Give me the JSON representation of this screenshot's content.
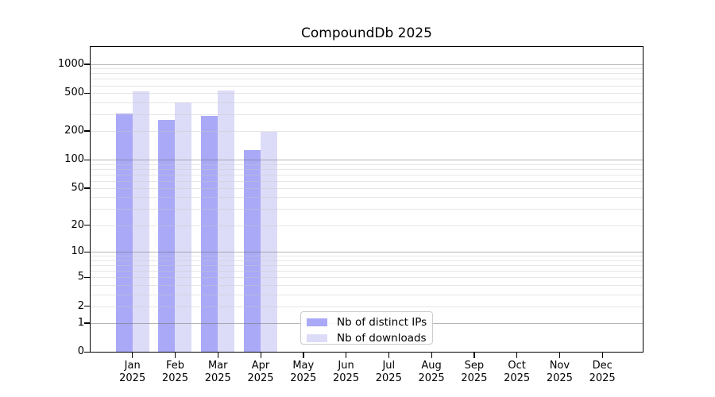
{
  "chart_data": {
    "type": "bar",
    "title": "CompoundDb 2025",
    "scale": "symlog (log1p)",
    "categories": [
      "Jan",
      "Feb",
      "Mar",
      "Apr",
      "May",
      "Jun",
      "Jul",
      "Aug",
      "Sep",
      "Oct",
      "Nov",
      "Dec"
    ],
    "category_year": "2025",
    "series": [
      {
        "name": "Nb of distinct IPs",
        "color": "#a9a9f7",
        "values": [
          303,
          263,
          285,
          126,
          null,
          null,
          null,
          null,
          null,
          null,
          null,
          null
        ]
      },
      {
        "name": "Nb of downloads",
        "color": "#dcdcf8",
        "values": [
          520,
          400,
          525,
          198,
          null,
          null,
          null,
          null,
          null,
          null,
          null,
          null
        ]
      }
    ],
    "y_axis": {
      "ticks": [
        0,
        1,
        2,
        5,
        10,
        20,
        50,
        100,
        200,
        500,
        1000
      ],
      "decade_ticks": [
        1,
        10,
        100,
        1000
      ],
      "minor_gridlines": [
        3,
        4,
        6,
        7,
        8,
        9,
        30,
        40,
        60,
        70,
        80,
        90,
        300,
        400,
        600,
        700,
        800,
        900
      ],
      "top_value": 1550
    },
    "legend": {
      "position": "bottom-center",
      "entries": [
        "Nb of distinct IPs",
        "Nb of downloads"
      ]
    },
    "grid": {
      "decade_line_color": "#b2b2b2",
      "minor_line_color": "#ebebeb"
    },
    "colors": {
      "axis": "#000000",
      "background": "#ffffff"
    }
  }
}
